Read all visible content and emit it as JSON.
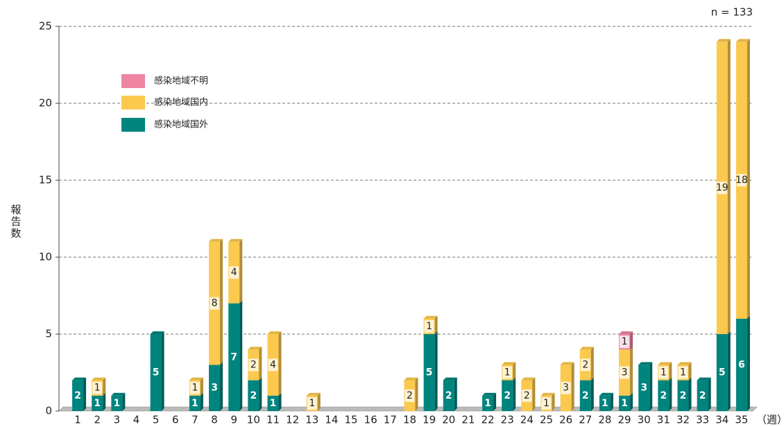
{
  "chart_data": {
    "type": "bar",
    "stacked": true,
    "annotation": "n = 133",
    "y_label": "報告数",
    "x_label": "（週）",
    "categories": [
      "1",
      "2",
      "3",
      "4",
      "5",
      "6",
      "7",
      "8",
      "9",
      "10",
      "11",
      "12",
      "13",
      "14",
      "15",
      "16",
      "17",
      "18",
      "19",
      "20",
      "21",
      "22",
      "23",
      "24",
      "25",
      "26",
      "27",
      "28",
      "29",
      "30",
      "31",
      "32",
      "33",
      "34",
      "35"
    ],
    "series": [
      {
        "name": "感染地域国外",
        "color": "#00847e",
        "values": [
          2,
          1,
          1,
          0,
          5,
          0,
          1,
          3,
          7,
          2,
          1,
          0,
          0,
          0,
          0,
          0,
          0,
          0,
          5,
          2,
          0,
          1,
          2,
          0,
          0,
          0,
          2,
          1,
          1,
          3,
          2,
          2,
          2,
          5,
          6
        ]
      },
      {
        "name": "感染地域国内",
        "color": "#fbc94e",
        "values": [
          0,
          1,
          0,
          0,
          0,
          0,
          1,
          8,
          4,
          2,
          4,
          0,
          1,
          0,
          0,
          0,
          0,
          2,
          1,
          0,
          0,
          0,
          1,
          2,
          1,
          3,
          2,
          0,
          3,
          0,
          1,
          1,
          0,
          19,
          18
        ]
      },
      {
        "name": "感染地域不明",
        "color": "#ee85a2",
        "values": [
          0,
          0,
          0,
          0,
          0,
          0,
          0,
          0,
          0,
          0,
          0,
          0,
          0,
          0,
          0,
          0,
          0,
          0,
          0,
          0,
          0,
          0,
          0,
          0,
          0,
          0,
          0,
          0,
          1,
          0,
          0,
          0,
          0,
          0,
          0
        ]
      }
    ],
    "ylim": [
      0,
      25
    ],
    "yticks": [
      0,
      5,
      10,
      15,
      20,
      25
    ],
    "grid": true
  }
}
